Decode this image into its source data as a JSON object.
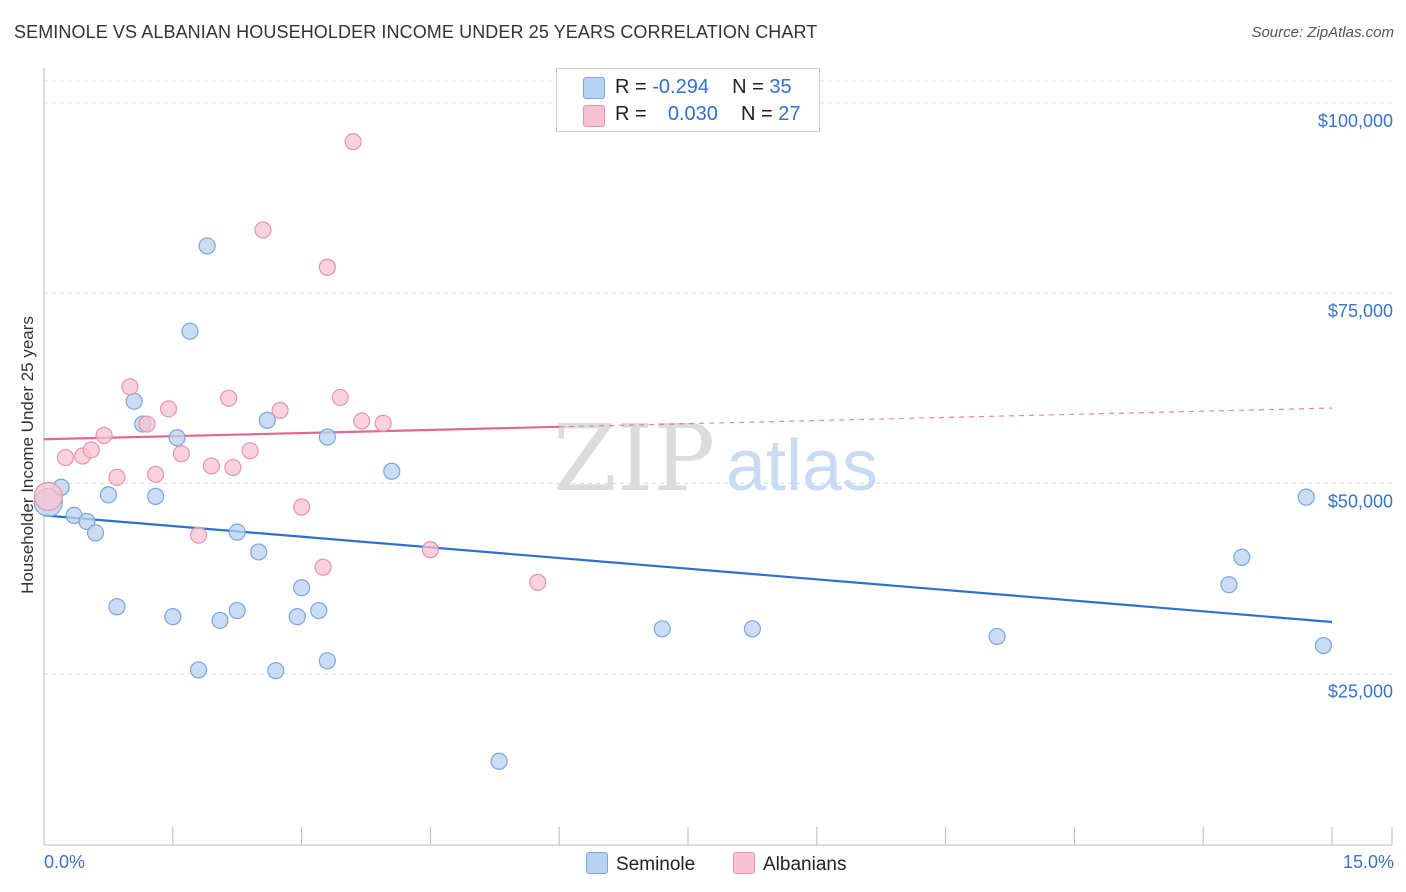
{
  "title": "SEMINOLE VS ALBANIAN HOUSEHOLDER INCOME UNDER 25 YEARS CORRELATION CHART",
  "source": "Source: ZipAtlas.com",
  "watermark": {
    "zip": "ZIP",
    "atlas": "atlas"
  },
  "legend": {
    "row1": {
      "r_label": "R =",
      "r_value": "-0.294",
      "n_label": "N =",
      "n_value": "35"
    },
    "row2": {
      "r_label": "R =",
      "r_value": "0.030",
      "n_label": "N =",
      "n_value": "27"
    }
  },
  "bottom_legend": {
    "seminole": "Seminole",
    "albanians": "Albanians"
  },
  "colors": {
    "seminole_fill": "#b9d2f2",
    "seminole_stroke": "#7aa6dd",
    "seminole_line": "#2f6fd0",
    "albanian_fill": "#f7c3d2",
    "albanian_stroke": "#e993ad",
    "albanian_line": "#e2688f",
    "grid": "#dddddd",
    "axis_text": "#3a74c7"
  },
  "chart_data": {
    "type": "scatter",
    "title": "SEMINOLE VS ALBANIAN HOUSEHOLDER INCOME UNDER 25 YEARS CORRELATION CHART",
    "xlabel": "",
    "ylabel": "Householder Income Under 25 years",
    "xlim": [
      0,
      15
    ],
    "ylim": [
      2500,
      103000
    ],
    "x_tick_labels": [
      "0.0%",
      "15.0%"
    ],
    "y_ticks": [
      25000,
      50000,
      75000,
      100000
    ],
    "y_tick_labels": [
      "$25,000",
      "$50,000",
      "$75,000",
      "$100,000"
    ],
    "series": [
      {
        "name": "Seminole",
        "r": -0.294,
        "n": 35,
        "trend": {
          "x": [
            0,
            15
          ],
          "y": [
            45800,
            31800
          ]
        },
        "points": [
          {
            "x": 0.05,
            "y": 47500,
            "big": true
          },
          {
            "x": 0.2,
            "y": 49500
          },
          {
            "x": 0.35,
            "y": 45800
          },
          {
            "x": 0.5,
            "y": 45000
          },
          {
            "x": 0.6,
            "y": 43500
          },
          {
            "x": 0.75,
            "y": 48500
          },
          {
            "x": 0.85,
            "y": 33800
          },
          {
            "x": 1.05,
            "y": 60800
          },
          {
            "x": 1.15,
            "y": 57800
          },
          {
            "x": 1.3,
            "y": 48300
          },
          {
            "x": 1.5,
            "y": 32500
          },
          {
            "x": 1.55,
            "y": 56000
          },
          {
            "x": 1.7,
            "y": 70000
          },
          {
            "x": 1.8,
            "y": 25500
          },
          {
            "x": 1.9,
            "y": 81200
          },
          {
            "x": 2.05,
            "y": 32000
          },
          {
            "x": 2.25,
            "y": 43600
          },
          {
            "x": 2.25,
            "y": 33300
          },
          {
            "x": 2.5,
            "y": 41000
          },
          {
            "x": 2.6,
            "y": 58300
          },
          {
            "x": 2.7,
            "y": 25400
          },
          {
            "x": 2.95,
            "y": 32500
          },
          {
            "x": 3.0,
            "y": 36300
          },
          {
            "x": 3.2,
            "y": 33300
          },
          {
            "x": 3.3,
            "y": 56100
          },
          {
            "x": 3.3,
            "y": 26700
          },
          {
            "x": 4.05,
            "y": 51600
          },
          {
            "x": 5.3,
            "y": 13500
          },
          {
            "x": 7.2,
            "y": 30900
          },
          {
            "x": 8.25,
            "y": 30900
          },
          {
            "x": 11.1,
            "y": 29900
          },
          {
            "x": 13.8,
            "y": 36700
          },
          {
            "x": 13.95,
            "y": 40300
          },
          {
            "x": 14.7,
            "y": 48200
          },
          {
            "x": 14.9,
            "y": 28700
          }
        ]
      },
      {
        "name": "Albanians",
        "r": 0.03,
        "n": 27,
        "trend": {
          "x": [
            0,
            15
          ],
          "y": [
            55800,
            59900
          ],
          "solid_until_x": 6.0
        },
        "points": [
          {
            "x": 0.05,
            "y": 48300,
            "big": true
          },
          {
            "x": 0.25,
            "y": 53400
          },
          {
            "x": 0.45,
            "y": 53600
          },
          {
            "x": 0.55,
            "y": 54400
          },
          {
            "x": 0.7,
            "y": 56300
          },
          {
            "x": 0.85,
            "y": 50800
          },
          {
            "x": 1.0,
            "y": 62700
          },
          {
            "x": 1.2,
            "y": 57800
          },
          {
            "x": 1.3,
            "y": 51200
          },
          {
            "x": 1.45,
            "y": 59800
          },
          {
            "x": 1.6,
            "y": 53900
          },
          {
            "x": 1.8,
            "y": 43200
          },
          {
            "x": 1.95,
            "y": 52300
          },
          {
            "x": 2.15,
            "y": 61200
          },
          {
            "x": 2.2,
            "y": 52100
          },
          {
            "x": 2.4,
            "y": 54300
          },
          {
            "x": 2.55,
            "y": 83300
          },
          {
            "x": 2.75,
            "y": 59600
          },
          {
            "x": 3.0,
            "y": 46900
          },
          {
            "x": 3.25,
            "y": 39000
          },
          {
            "x": 3.3,
            "y": 78400
          },
          {
            "x": 3.45,
            "y": 61300
          },
          {
            "x": 3.6,
            "y": 94900
          },
          {
            "x": 3.7,
            "y": 58200
          },
          {
            "x": 3.95,
            "y": 57900
          },
          {
            "x": 4.5,
            "y": 41300
          },
          {
            "x": 5.75,
            "y": 37000
          }
        ]
      }
    ]
  }
}
